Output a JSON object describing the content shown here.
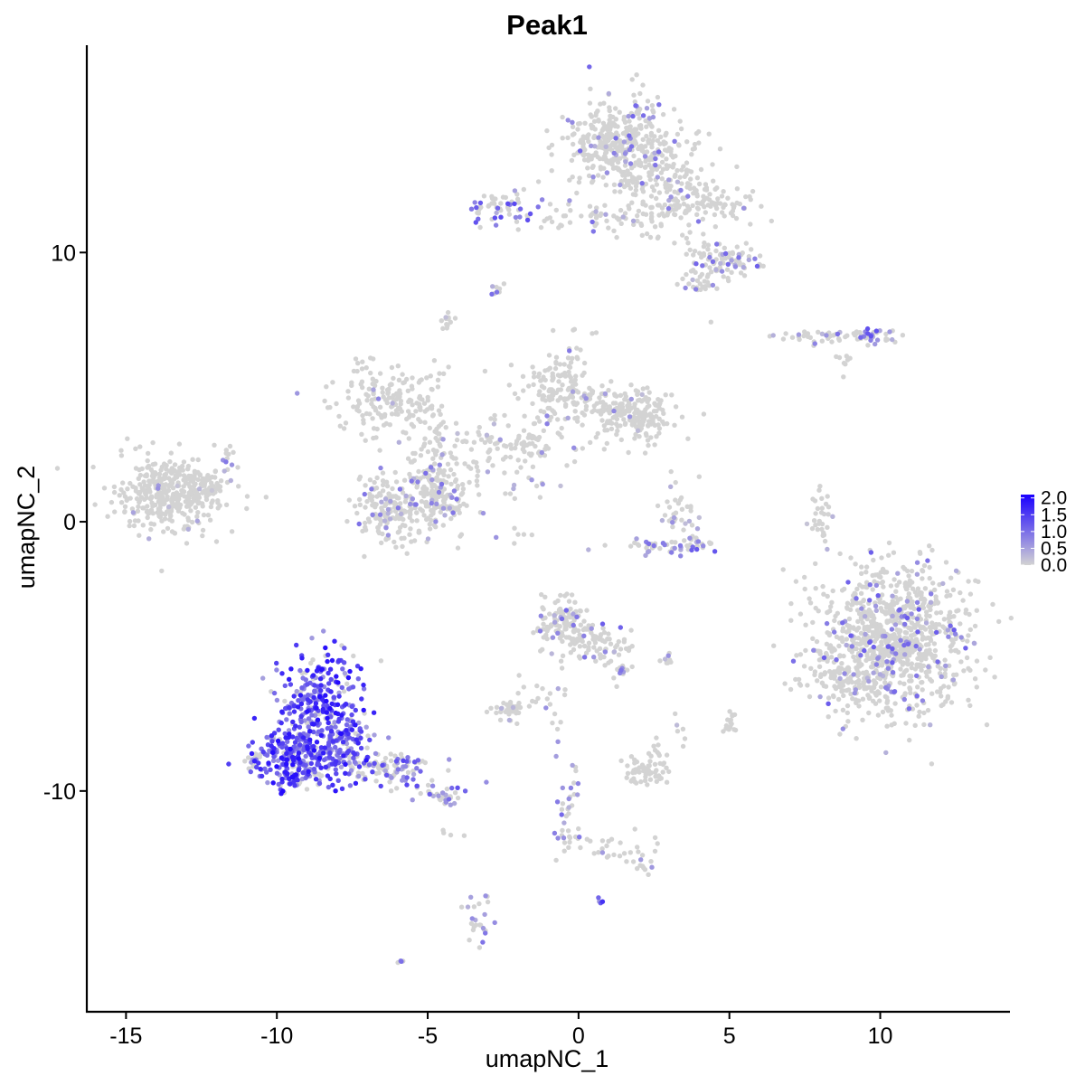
{
  "chart_data": {
    "type": "scatter",
    "title": "Peak1",
    "xlabel": "umapNC_1",
    "ylabel": "umapNC_2",
    "xlim": [
      -16.3,
      14.3
    ],
    "ylim": [
      -18.2,
      17.7
    ],
    "x_ticks": [
      {
        "value": -15,
        "label": "-15"
      },
      {
        "value": -10,
        "label": "-10"
      },
      {
        "value": -5,
        "label": "-5"
      },
      {
        "value": 0,
        "label": "0"
      },
      {
        "value": 5,
        "label": "5"
      },
      {
        "value": 10,
        "label": "10"
      }
    ],
    "y_ticks": [
      {
        "value": 10,
        "label": "10"
      },
      {
        "value": 0,
        "label": "0"
      },
      {
        "value": -10,
        "label": "-10"
      }
    ],
    "grid": false,
    "color_scale": {
      "low_color": "#d3d3d3",
      "high_color": "#1a00ff",
      "min": 0,
      "max": 2.1,
      "ticks": [
        {
          "value": 0.0,
          "label": "0.0"
        },
        {
          "value": 0.5,
          "label": "0.5"
        },
        {
          "value": 1.0,
          "label": "1.0"
        },
        {
          "value": 1.5,
          "label": "1.5"
        },
        {
          "value": 2.0,
          "label": "2.0"
        }
      ],
      "legend_position": "right"
    },
    "clusters": [
      {
        "cx": -13.5,
        "cy": 1.0,
        "sx": 0.9,
        "sy": 0.7,
        "n": 380,
        "expr": 0.03,
        "max": 0.7
      },
      {
        "cx": -11.6,
        "cy": 2.2,
        "sx": 0.15,
        "sy": 0.4,
        "n": 12,
        "expr": 0.35,
        "max": 1.0
      },
      {
        "cx": -12.4,
        "cy": 1.4,
        "sx": 0.5,
        "sy": 0.3,
        "n": 40,
        "expr": 0.02,
        "max": 0.4
      },
      {
        "cx": -6.2,
        "cy": 0.5,
        "sx": 0.55,
        "sy": 0.7,
        "n": 170,
        "expr": 0.12,
        "max": 1.0
      },
      {
        "cx": -4.6,
        "cy": 0.8,
        "sx": 0.6,
        "sy": 0.7,
        "n": 160,
        "expr": 0.14,
        "max": 1.0
      },
      {
        "cx": -6.2,
        "cy": 4.6,
        "sx": 1.0,
        "sy": 0.7,
        "n": 180,
        "expr": 0.05,
        "max": 0.9
      },
      {
        "cx": -4.8,
        "cy": 2.6,
        "sx": 0.4,
        "sy": 0.8,
        "n": 60,
        "expr": 0.08,
        "max": 0.8
      },
      {
        "cx": -2.5,
        "cy": 2.8,
        "sx": 1.0,
        "sy": 0.5,
        "n": 110,
        "expr": 0.05,
        "max": 0.7
      },
      {
        "cx": -0.6,
        "cy": 5.0,
        "sx": 0.7,
        "sy": 0.8,
        "n": 150,
        "expr": 0.06,
        "max": 0.9
      },
      {
        "cx": 1.9,
        "cy": 3.9,
        "sx": 0.6,
        "sy": 0.45,
        "n": 170,
        "expr": 0.05,
        "max": 0.9
      },
      {
        "cx": 0.8,
        "cy": 4.3,
        "sx": 0.8,
        "sy": 0.35,
        "n": 60,
        "expr": 0.06,
        "max": 0.8
      },
      {
        "cx": -1.8,
        "cy": 1.3,
        "sx": 0.6,
        "sy": 0.3,
        "n": 15,
        "expr": 0.2,
        "max": 0.8
      },
      {
        "cx": -4.4,
        "cy": 7.5,
        "sx": 0.12,
        "sy": 0.18,
        "n": 12,
        "expr": 0.05,
        "max": 0.5
      },
      {
        "cx": -2.8,
        "cy": 8.7,
        "sx": 0.12,
        "sy": 0.12,
        "n": 8,
        "expr": 0.5,
        "max": 1.0
      },
      {
        "cx": -2.4,
        "cy": 11.6,
        "sx": 0.6,
        "sy": 0.35,
        "n": 60,
        "expr": 0.45,
        "max": 1.4
      },
      {
        "cx": -1.0,
        "cy": 11.2,
        "sx": 0.3,
        "sy": 0.15,
        "n": 8,
        "expr": 0.15,
        "max": 0.9
      },
      {
        "cx": 1.4,
        "cy": 14.0,
        "sx": 0.9,
        "sy": 0.8,
        "n": 420,
        "expr": 0.1,
        "max": 1.1
      },
      {
        "cx": 3.2,
        "cy": 12.2,
        "sx": 0.8,
        "sy": 0.8,
        "n": 160,
        "expr": 0.08,
        "max": 1.0
      },
      {
        "cx": 1.0,
        "cy": 11.4,
        "sx": 0.9,
        "sy": 0.3,
        "n": 50,
        "expr": 0.1,
        "max": 1.0
      },
      {
        "cx": 4.7,
        "cy": 11.8,
        "sx": 0.7,
        "sy": 0.3,
        "n": 50,
        "expr": 0.1,
        "max": 1.1
      },
      {
        "cx": 5.2,
        "cy": 9.6,
        "sx": 0.5,
        "sy": 0.3,
        "n": 60,
        "expr": 0.25,
        "max": 1.2
      },
      {
        "cx": 4.2,
        "cy": 9.4,
        "sx": 0.4,
        "sy": 0.6,
        "n": 50,
        "expr": 0.1,
        "max": 1.0
      },
      {
        "cx": 3.9,
        "cy": 8.8,
        "sx": 0.25,
        "sy": 0.2,
        "n": 12,
        "expr": 0.3,
        "max": 1.0
      },
      {
        "cx": 8.2,
        "cy": 6.9,
        "sx": 1.1,
        "sy": 0.12,
        "n": 50,
        "expr": 0.2,
        "max": 1.0
      },
      {
        "cx": 9.6,
        "cy": 6.9,
        "sx": 0.35,
        "sy": 0.2,
        "n": 30,
        "expr": 0.45,
        "max": 1.3
      },
      {
        "cx": 8.7,
        "cy": 5.9,
        "sx": 0.2,
        "sy": 0.2,
        "n": 8,
        "expr": 0.02,
        "max": 0.3
      },
      {
        "cx": 3.3,
        "cy": 0.3,
        "sx": 0.35,
        "sy": 0.6,
        "n": 40,
        "expr": 0.15,
        "max": 0.8
      },
      {
        "cx": 3.0,
        "cy": -0.9,
        "sx": 0.8,
        "sy": 0.15,
        "n": 50,
        "expr": 0.45,
        "max": 1.3
      },
      {
        "cx": 8.1,
        "cy": 0.1,
        "sx": 0.15,
        "sy": 0.6,
        "n": 30,
        "expr": 0.03,
        "max": 0.5
      },
      {
        "cx": 10.5,
        "cy": -4.3,
        "sx": 1.3,
        "sy": 1.3,
        "n": 900,
        "expr": 0.12,
        "max": 1.2
      },
      {
        "cx": 9.3,
        "cy": -6.0,
        "sx": 0.8,
        "sy": 0.5,
        "n": 130,
        "expr": 0.1,
        "max": 1.0
      },
      {
        "cx": 8.2,
        "cy": -4.8,
        "sx": 0.3,
        "sy": 0.5,
        "n": 20,
        "expr": 0.05,
        "max": 0.8
      },
      {
        "cx": -0.5,
        "cy": -3.9,
        "sx": 0.5,
        "sy": 0.55,
        "n": 140,
        "expr": 0.12,
        "max": 1.1
      },
      {
        "cx": 0.8,
        "cy": -4.6,
        "sx": 0.5,
        "sy": 0.4,
        "n": 60,
        "expr": 0.2,
        "max": 1.2
      },
      {
        "cx": 1.4,
        "cy": -5.4,
        "sx": 0.2,
        "sy": 0.3,
        "n": 15,
        "expr": 0.25,
        "max": 1.1
      },
      {
        "cx": -1.2,
        "cy": -6.5,
        "sx": 0.5,
        "sy": 0.6,
        "n": 20,
        "expr": 0.1,
        "max": 0.9
      },
      {
        "cx": -2.4,
        "cy": -7.0,
        "sx": 0.3,
        "sy": 0.2,
        "n": 35,
        "expr": 0.02,
        "max": 0.4
      },
      {
        "cx": 2.9,
        "cy": -5.1,
        "sx": 0.12,
        "sy": 0.1,
        "n": 8,
        "expr": 0.3,
        "max": 0.9
      },
      {
        "cx": 2.2,
        "cy": -9.3,
        "sx": 0.4,
        "sy": 0.25,
        "n": 60,
        "expr": 0.04,
        "max": 0.6
      },
      {
        "cx": 2.5,
        "cy": -8.5,
        "sx": 0.2,
        "sy": 0.3,
        "n": 12,
        "expr": 0.03,
        "max": 0.4
      },
      {
        "cx": 5.0,
        "cy": -7.5,
        "sx": 0.12,
        "sy": 0.3,
        "n": 15,
        "expr": 0.03,
        "max": 0.4
      },
      {
        "cx": 3.3,
        "cy": -7.9,
        "sx": 0.15,
        "sy": 0.35,
        "n": 6,
        "expr": 0.02,
        "max": 0.3
      },
      {
        "cx": -8.6,
        "cy": -7.0,
        "sx": 0.75,
        "sy": 1.0,
        "n": 330,
        "expr": 0.85,
        "max": 2.0
      },
      {
        "cx": -9.4,
        "cy": -8.9,
        "sx": 0.75,
        "sy": 0.55,
        "n": 250,
        "expr": 0.8,
        "max": 2.0
      },
      {
        "cx": -7.7,
        "cy": -8.6,
        "sx": 0.5,
        "sy": 0.5,
        "n": 100,
        "expr": 0.7,
        "max": 1.8
      },
      {
        "cx": -6.1,
        "cy": -9.2,
        "sx": 0.7,
        "sy": 0.35,
        "n": 90,
        "expr": 0.45,
        "max": 1.4
      },
      {
        "cx": -4.5,
        "cy": -10.1,
        "sx": 0.5,
        "sy": 0.2,
        "n": 35,
        "expr": 0.45,
        "max": 1.3
      },
      {
        "cx": -0.3,
        "cy": -10.8,
        "sx": 0.25,
        "sy": 1.0,
        "n": 40,
        "expr": 0.3,
        "max": 1.1
      },
      {
        "cx": 1.0,
        "cy": -12.2,
        "sx": 0.8,
        "sy": 0.25,
        "n": 25,
        "expr": 0.1,
        "max": 0.9
      },
      {
        "cx": 2.3,
        "cy": -12.6,
        "sx": 0.2,
        "sy": 0.2,
        "n": 12,
        "expr": 0.3,
        "max": 1.0
      },
      {
        "cx": -3.3,
        "cy": -14.8,
        "sx": 0.2,
        "sy": 0.5,
        "n": 25,
        "expr": 0.45,
        "max": 1.2
      },
      {
        "cx": 0.7,
        "cy": -14.1,
        "sx": 0.05,
        "sy": 0.05,
        "n": 4,
        "expr": 0.9,
        "max": 1.6
      },
      {
        "cx": -5.9,
        "cy": -16.3,
        "sx": 0.08,
        "sy": 0.05,
        "n": 4,
        "expr": 0.5,
        "max": 1.0
      },
      {
        "cx": -2.0,
        "cy": -0.8,
        "sx": 0.3,
        "sy": 0.35,
        "n": 6,
        "expr": 0.1,
        "max": 0.8
      },
      {
        "cx": -4.2,
        "cy": -11.5,
        "sx": 0.3,
        "sy": 0.1,
        "n": 4,
        "expr": 0.02,
        "max": 0.3
      }
    ]
  }
}
